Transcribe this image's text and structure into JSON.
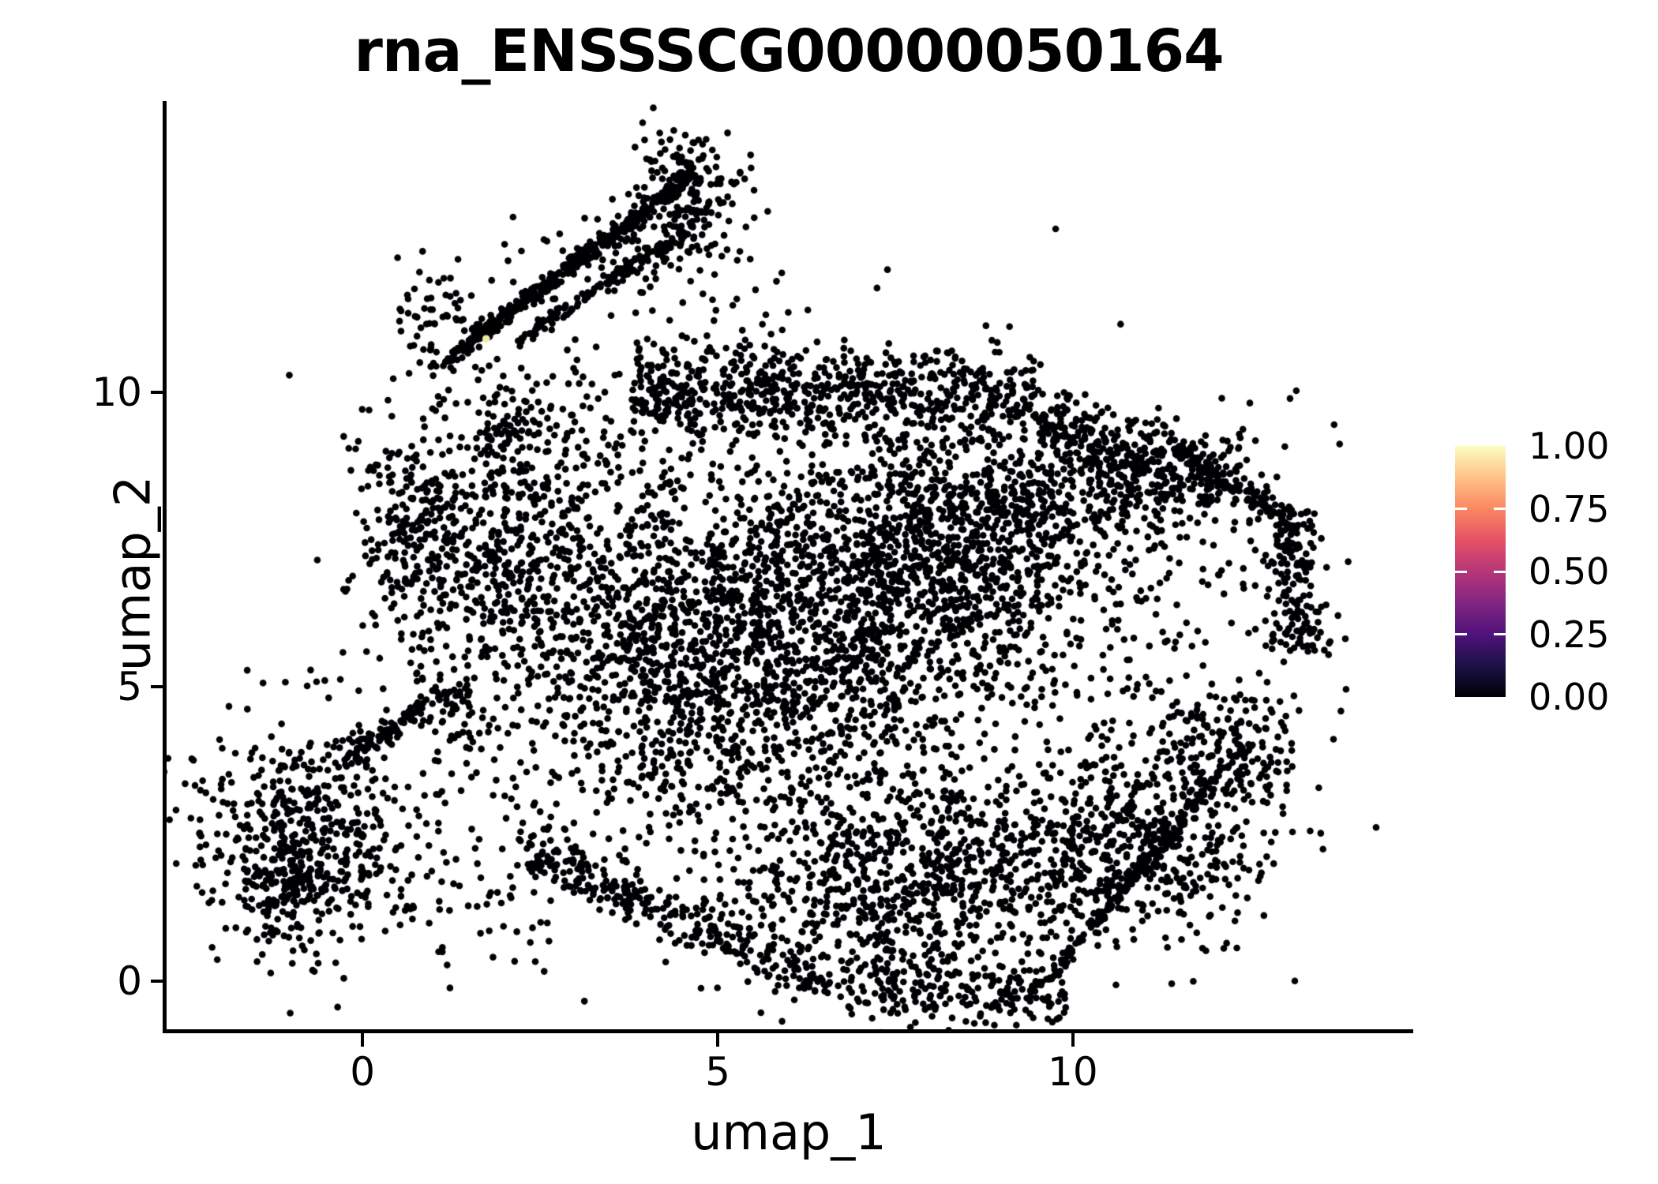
{
  "title": "rna_ENSSSCG00000050164",
  "chart_data": {
    "type": "scatter",
    "title": "rna_ENSSSCG00000050164",
    "xlabel": "umap_1",
    "ylabel": "umap_2",
    "xlim": [
      -2.77,
      14.77
    ],
    "ylim": [
      -0.84,
      14.92
    ],
    "x_ticks": [
      0,
      5,
      10
    ],
    "x_tick_labels": [
      "0",
      "5",
      "10"
    ],
    "y_ticks": [
      0,
      5,
      10
    ],
    "y_tick_labels": [
      "0",
      "5",
      "10"
    ],
    "grid": false,
    "legend_position": "right",
    "point_color": "#000004",
    "point_radius_px": 4.3,
    "n_points_approx": 9641,
    "highlight_point": {
      "x": 1.74,
      "y": 10.91,
      "value": 1.0,
      "color": "#F1ECA3"
    },
    "colorbar": {
      "colormap": "magma",
      "tick_labels": [
        "1.00",
        "0.75",
        "0.50",
        "0.25",
        "0.00"
      ],
      "tick_values": [
        1.0,
        0.75,
        0.5,
        0.25,
        0.0
      ],
      "inner_tick_values": [
        0.75,
        0.5,
        0.25
      ],
      "gradient_stops": [
        "#000004",
        "#1d1147",
        "#51127c",
        "#822681",
        "#b63679",
        "#e65164",
        "#fb8861",
        "#fec287",
        "#fcfdbf"
      ]
    },
    "seed": 20240521,
    "clusters": [
      {
        "t": "b",
        "x1": 1.18,
        "y1": 10.56,
        "x2": 4.62,
        "y2": 13.65,
        "s": 0.2,
        "n": 430
      },
      {
        "t": "b",
        "x1": 2.23,
        "y1": 10.9,
        "x2": 4.68,
        "y2": 12.84,
        "s": 0.13,
        "n": 140
      },
      {
        "t": "g",
        "cx": 4.68,
        "cy": 13.31,
        "sx": 0.42,
        "sy": 0.4,
        "n": 110
      },
      {
        "t": "g",
        "cx": 4.46,
        "cy": 14.05,
        "sx": 0.3,
        "sy": 0.25,
        "n": 40
      },
      {
        "t": "g",
        "cx": 4.18,
        "cy": 12.37,
        "sx": 0.5,
        "sy": 0.33,
        "n": 70
      },
      {
        "t": "g",
        "cx": 1.1,
        "cy": 11.3,
        "sx": 0.33,
        "sy": 0.48,
        "n": 60
      },
      {
        "t": "r",
        "x1": 1.57,
        "y1": 9.16,
        "x2": 6.01,
        "y2": 13.04,
        "n": 120
      },
      {
        "t": "g",
        "cx": 2.12,
        "cy": 9.36,
        "sx": 0.28,
        "sy": 0.42,
        "n": 50
      },
      {
        "t": "b",
        "x1": 3.79,
        "y1": 10.03,
        "x2": 9.46,
        "y2": 10.03,
        "s": 0.35,
        "n": 650
      },
      {
        "t": "b",
        "x1": 9.46,
        "y1": 9.56,
        "x2": 11.46,
        "y2": 8.75,
        "s": 0.3,
        "n": 170
      },
      {
        "t": "g",
        "cx": 2.01,
        "cy": 7.41,
        "sx": 1.1,
        "sy": 1.35,
        "n": 700
      },
      {
        "t": "g",
        "cx": 0.68,
        "cy": 7.82,
        "sx": 0.35,
        "sy": 0.6,
        "n": 120
      },
      {
        "t": "g",
        "cx": 1.29,
        "cy": 4.66,
        "sx": 0.26,
        "sy": 0.5,
        "n": 80
      },
      {
        "t": "g",
        "cx": 4.46,
        "cy": 5.4,
        "sx": 1.25,
        "sy": 1.55,
        "n": 950
      },
      {
        "t": "g",
        "cx": 6.79,
        "cy": 6.34,
        "sx": 1.3,
        "sy": 1.45,
        "n": 950
      },
      {
        "t": "g",
        "cx": 8.57,
        "cy": 7.55,
        "sx": 1.05,
        "sy": 1.05,
        "n": 750
      },
      {
        "t": "g",
        "cx": 10.79,
        "cy": 8.42,
        "sx": 0.95,
        "sy": 0.55,
        "n": 320
      },
      {
        "t": "b",
        "x1": 13.01,
        "y1": 8.08,
        "x2": 13.23,
        "y2": 5.54,
        "s": 0.22,
        "n": 170
      },
      {
        "t": "b",
        "x1": 11.46,
        "y1": 8.95,
        "x2": 13.12,
        "y2": 7.75,
        "s": 0.28,
        "n": 160
      },
      {
        "t": "r",
        "x1": 10.34,
        "y1": 3.12,
        "x2": 12.9,
        "y2": 7.28,
        "n": 80
      },
      {
        "t": "g",
        "cx": 10.79,
        "cy": 2.32,
        "sx": 0.95,
        "sy": 0.8,
        "n": 520
      },
      {
        "t": "g",
        "cx": 12.18,
        "cy": 3.93,
        "sx": 0.5,
        "sy": 0.5,
        "n": 150
      },
      {
        "t": "g",
        "cx": 7.79,
        "cy": 1.78,
        "sx": 1.35,
        "sy": 0.9,
        "n": 780
      },
      {
        "t": "b",
        "x1": 6.68,
        "y1": 0.04,
        "x2": 9.9,
        "y2": -0.29,
        "s": 0.28,
        "n": 220
      },
      {
        "t": "b",
        "x1": 2.23,
        "y1": 2.25,
        "x2": 6.57,
        "y2": -0.03,
        "s": 0.3,
        "n": 300
      },
      {
        "t": "b",
        "x1": 12.23,
        "y1": 3.79,
        "x2": 9.57,
        "y2": -0.09,
        "s": 0.25,
        "n": 180
      },
      {
        "t": "g",
        "cx": 7.12,
        "cy": 5.67,
        "sx": 2.4,
        "sy": 2.2,
        "n": 600
      },
      {
        "t": "g",
        "cx": -0.77,
        "cy": 2.52,
        "sx": 0.85,
        "sy": 1.0,
        "n": 430
      },
      {
        "t": "b",
        "x1": -0.32,
        "y1": 3.73,
        "x2": 0.84,
        "y2": 4.6,
        "s": 0.22,
        "n": 90
      },
      {
        "t": "r",
        "x1": 0.46,
        "y1": 0.17,
        "x2": 2.68,
        "y2": 3.26,
        "n": 70
      },
      {
        "t": "g",
        "cx": -1.1,
        "cy": 1.65,
        "sx": 0.5,
        "sy": 0.6,
        "n": 180
      }
    ]
  }
}
